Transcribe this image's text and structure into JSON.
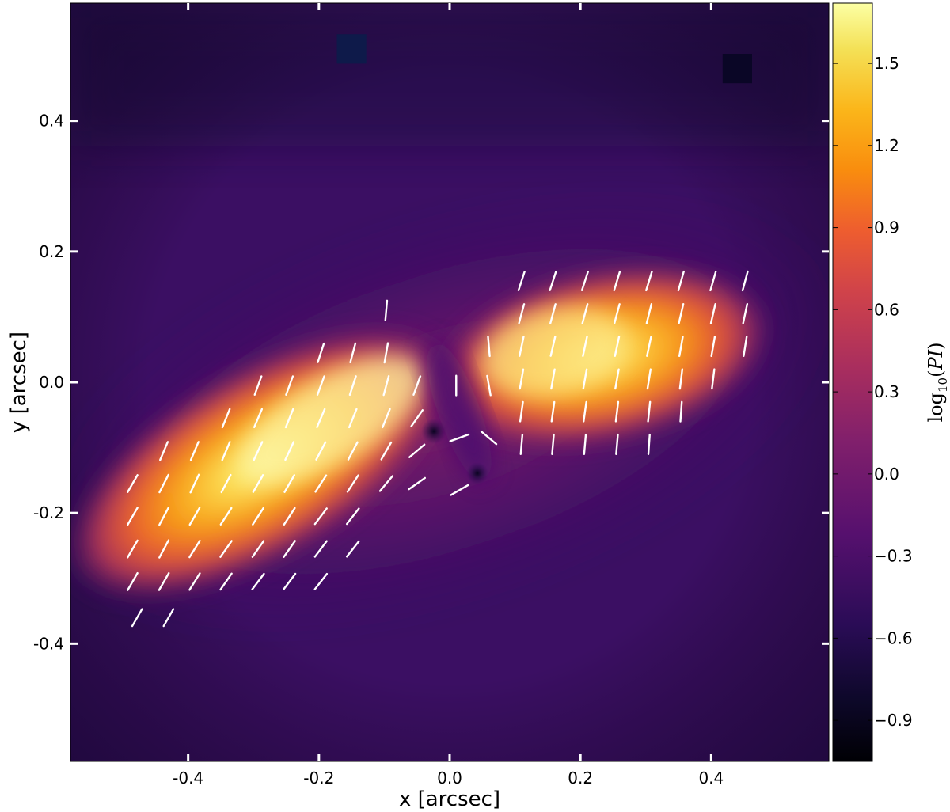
{
  "chart_data": {
    "type": "heatmap",
    "title": "",
    "xlabel": "x [arcsec]",
    "ylabel": "y [arcsec]",
    "xlim": [
      -0.58,
      0.58
    ],
    "ylim": [
      -0.58,
      0.58
    ],
    "x_ticks": [
      -0.4,
      -0.2,
      0.0,
      0.2,
      0.4
    ],
    "x_tick_labels": [
      "-0.4",
      "-0.2",
      "0.0",
      "0.2",
      "0.4"
    ],
    "y_ticks": [
      0.4,
      0.2,
      0.0,
      -0.2,
      -0.4
    ],
    "y_tick_labels": [
      "0.4",
      "0.2",
      "0.0",
      "-0.2",
      "-0.4"
    ],
    "colorbar": {
      "label": "log10(PI)",
      "range": [
        -1.05,
        1.72
      ],
      "ticks": [
        1.5,
        1.2,
        0.9,
        0.6,
        0.3,
        0.0,
        -0.3,
        -0.6,
        -0.9
      ],
      "tick_labels": [
        "1.5",
        "1.2",
        "0.9",
        "0.6",
        "0.3",
        "0.0",
        "−0.3",
        "−0.6",
        "−0.9"
      ],
      "colormap": "inferno"
    },
    "image_features": {
      "background_level": -0.55,
      "lobes": [
        {
          "name": "south-east lobe",
          "center": [
            -0.2,
            -0.13
          ],
          "peak": 1.6,
          "position_angle_deg": 30
        },
        {
          "name": "north-west lobe",
          "center": [
            0.2,
            0.03
          ],
          "peak": 1.45,
          "position_angle_deg": 15
        }
      ],
      "masked_spots": [
        [
          -0.15,
          0.51
        ],
        [
          0.44,
          0.48
        ]
      ]
    },
    "polarization_vectors": {
      "color": "#ffffff",
      "length_arcsec": 0.03,
      "vectors": [
        [
          -0.485,
          -0.155,
          30
        ],
        [
          -0.485,
          -0.205,
          30
        ],
        [
          -0.485,
          -0.255,
          30
        ],
        [
          -0.485,
          -0.305,
          30
        ],
        [
          -0.478,
          -0.36,
          30
        ],
        [
          -0.437,
          -0.105,
          23
        ],
        [
          -0.437,
          -0.155,
          27
        ],
        [
          -0.437,
          -0.205,
          28
        ],
        [
          -0.437,
          -0.255,
          28
        ],
        [
          -0.437,
          -0.305,
          30
        ],
        [
          -0.43,
          -0.36,
          30
        ],
        [
          -0.39,
          -0.105,
          23
        ],
        [
          -0.39,
          -0.155,
          25
        ],
        [
          -0.39,
          -0.205,
          30
        ],
        [
          -0.39,
          -0.255,
          32
        ],
        [
          -0.39,
          -0.305,
          32
        ],
        [
          -0.342,
          -0.055,
          22
        ],
        [
          -0.342,
          -0.105,
          23
        ],
        [
          -0.342,
          -0.155,
          28
        ],
        [
          -0.342,
          -0.205,
          33
        ],
        [
          -0.342,
          -0.255,
          35
        ],
        [
          -0.342,
          -0.305,
          35
        ],
        [
          -0.293,
          -0.005,
          20
        ],
        [
          -0.293,
          -0.055,
          23
        ],
        [
          -0.293,
          -0.105,
          25
        ],
        [
          -0.293,
          -0.155,
          30
        ],
        [
          -0.293,
          -0.205,
          33
        ],
        [
          -0.293,
          -0.255,
          35
        ],
        [
          -0.293,
          -0.305,
          37
        ],
        [
          -0.245,
          -0.005,
          20
        ],
        [
          -0.245,
          -0.055,
          22
        ],
        [
          -0.245,
          -0.105,
          25
        ],
        [
          -0.245,
          -0.155,
          30
        ],
        [
          -0.245,
          -0.205,
          33
        ],
        [
          -0.245,
          -0.255,
          35
        ],
        [
          -0.245,
          -0.305,
          37
        ],
        [
          -0.197,
          0.045,
          18
        ],
        [
          -0.197,
          -0.005,
          20
        ],
        [
          -0.197,
          -0.055,
          23
        ],
        [
          -0.197,
          -0.105,
          28
        ],
        [
          -0.197,
          -0.155,
          33
        ],
        [
          -0.197,
          -0.205,
          37
        ],
        [
          -0.197,
          -0.255,
          37
        ],
        [
          -0.197,
          -0.305,
          38
        ],
        [
          -0.148,
          0.045,
          15
        ],
        [
          -0.148,
          -0.005,
          18
        ],
        [
          -0.148,
          -0.055,
          22
        ],
        [
          -0.148,
          -0.105,
          28
        ],
        [
          -0.148,
          -0.155,
          33
        ],
        [
          -0.148,
          -0.205,
          38
        ],
        [
          -0.148,
          -0.255,
          38
        ],
        [
          -0.097,
          0.11,
          5
        ],
        [
          -0.097,
          0.045,
          10
        ],
        [
          -0.097,
          -0.005,
          15
        ],
        [
          -0.097,
          -0.055,
          22
        ],
        [
          -0.097,
          -0.105,
          30
        ],
        [
          -0.097,
          -0.155,
          40
        ],
        [
          -0.05,
          -0.005,
          20
        ],
        [
          -0.05,
          -0.055,
          35
        ],
        [
          -0.05,
          -0.105,
          50
        ],
        [
          -0.05,
          -0.155,
          55
        ],
        [
          0.01,
          -0.005,
          0
        ],
        [
          0.015,
          -0.085,
          70
        ],
        [
          0.015,
          -0.165,
          60
        ],
        [
          0.06,
          -0.085,
          -50
        ],
        [
          0.06,
          -0.005,
          -10
        ],
        [
          0.06,
          0.055,
          -5
        ],
        [
          0.11,
          0.155,
          18
        ],
        [
          0.11,
          0.105,
          15
        ],
        [
          0.11,
          0.055,
          12
        ],
        [
          0.11,
          0.005,
          10
        ],
        [
          0.11,
          -0.045,
          8
        ],
        [
          0.11,
          -0.095,
          5
        ],
        [
          0.158,
          0.155,
          18
        ],
        [
          0.158,
          0.105,
          15
        ],
        [
          0.158,
          0.055,
          13
        ],
        [
          0.158,
          0.005,
          10
        ],
        [
          0.158,
          -0.045,
          8
        ],
        [
          0.158,
          -0.095,
          5
        ],
        [
          0.207,
          0.155,
          18
        ],
        [
          0.207,
          0.105,
          15
        ],
        [
          0.207,
          0.055,
          12
        ],
        [
          0.207,
          0.005,
          10
        ],
        [
          0.207,
          -0.045,
          8
        ],
        [
          0.207,
          -0.095,
          5
        ],
        [
          0.256,
          0.155,
          17
        ],
        [
          0.256,
          0.105,
          15
        ],
        [
          0.256,
          0.055,
          12
        ],
        [
          0.256,
          0.005,
          10
        ],
        [
          0.256,
          -0.045,
          7
        ],
        [
          0.256,
          -0.095,
          5
        ],
        [
          0.305,
          0.155,
          17
        ],
        [
          0.305,
          0.105,
          14
        ],
        [
          0.305,
          0.055,
          12
        ],
        [
          0.305,
          0.005,
          9
        ],
        [
          0.305,
          -0.045,
          6
        ],
        [
          0.305,
          -0.095,
          4
        ],
        [
          0.354,
          0.155,
          16
        ],
        [
          0.354,
          0.105,
          13
        ],
        [
          0.354,
          0.055,
          10
        ],
        [
          0.354,
          0.005,
          7
        ],
        [
          0.354,
          -0.045,
          4
        ],
        [
          0.403,
          0.155,
          16
        ],
        [
          0.403,
          0.105,
          13
        ],
        [
          0.403,
          0.055,
          10
        ],
        [
          0.403,
          0.005,
          7
        ],
        [
          0.452,
          0.155,
          15
        ],
        [
          0.452,
          0.105,
          12
        ],
        [
          0.452,
          0.055,
          9
        ]
      ]
    }
  }
}
